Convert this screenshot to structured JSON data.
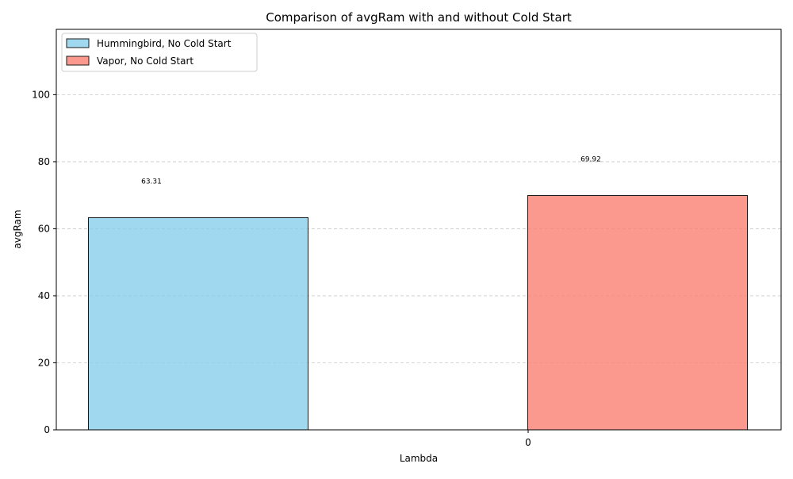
{
  "chart_data": {
    "type": "bar",
    "title": "Comparison of avgRam with and without Cold Start",
    "xlabel": "Lambda",
    "ylabel": "avgRam",
    "categories": [
      "0"
    ],
    "ylim": [
      0,
      119.5
    ],
    "yticks": [
      0,
      20,
      40,
      60,
      80,
      100
    ],
    "grid": {
      "y": true,
      "x": false,
      "style": "dashed"
    },
    "legend_position": "top-left",
    "series": [
      {
        "name": "Hummingbird, No Cold Start",
        "values": [
          63.31
        ],
        "color": "#87CEEB",
        "label": "63.31"
      },
      {
        "name": "Vapor, No Cold Start",
        "values": [
          69.92
        ],
        "color": "#FA8072",
        "label": "69.92"
      }
    ]
  }
}
